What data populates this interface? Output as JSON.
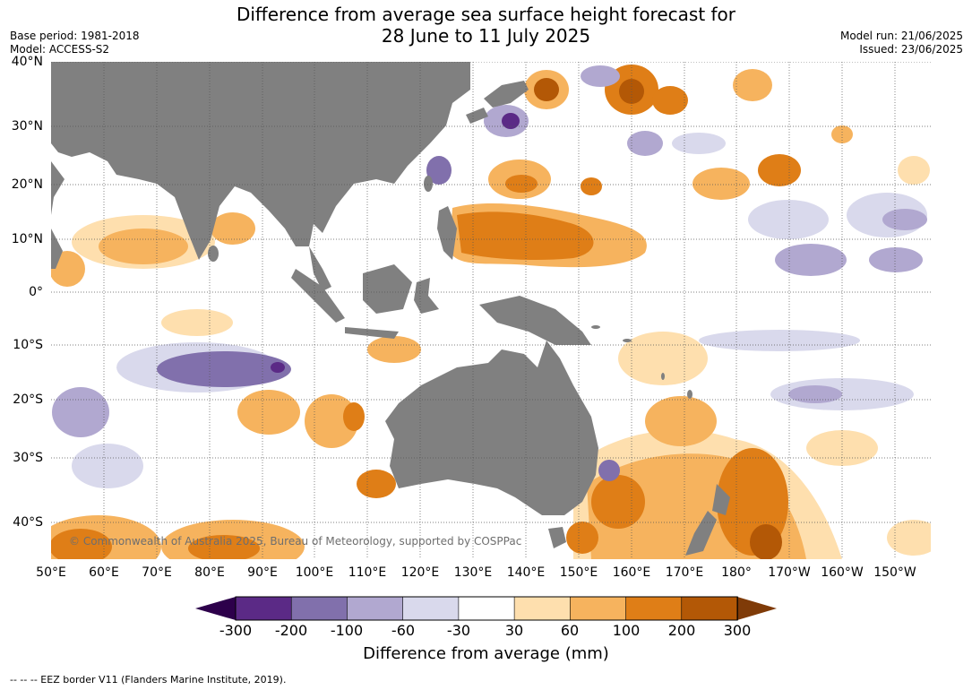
{
  "title": {
    "line1": "Difference from average sea surface height forecast for",
    "line2": "28 June to 11 July 2025"
  },
  "meta_left": {
    "base_period": "Base period: 1981-2018",
    "model": "Model: ACCESS-S2"
  },
  "meta_right": {
    "model_run": "Model run: 21/06/2025",
    "issued": "Issued: 23/06/2025"
  },
  "map": {
    "latitude_labels": [
      "40°N",
      "30°N",
      "20°N",
      "10°N",
      "0°",
      "10°S",
      "20°S",
      "30°S",
      "40°S"
    ],
    "longitude_labels": [
      "50°E",
      "60°E",
      "70°E",
      "80°E",
      "90°E",
      "100°E",
      "110°E",
      "120°E",
      "130°E",
      "140°E",
      "150°E",
      "160°E",
      "170°E",
      "180°",
      "170°W",
      "160°W",
      "150°W"
    ],
    "land_color": "#808080",
    "ocean_neutral_color": "#ffffff",
    "gridlines": "dotted",
    "copyright": "© Commonwealth of Australia 2025, Bureau of Meteorology, supported by COSPPac"
  },
  "colorbar": {
    "ticks": [
      "-300",
      "-200",
      "-100",
      "-60",
      "-30",
      "30",
      "60",
      "100",
      "200",
      "300"
    ],
    "colors": [
      "#5b2a86",
      "#8170ac",
      "#b1a8d0",
      "#d9d9ec",
      "#ffffff",
      "#fedfae",
      "#f6b35e",
      "#df7e17",
      "#b35806"
    ],
    "under_color": "#2d004b",
    "over_color": "#7f3b08",
    "label": "Difference from average (mm)"
  },
  "footnote": "--  --  -- EEZ border V11 (Flanders Marine Institute, 2019)."
}
